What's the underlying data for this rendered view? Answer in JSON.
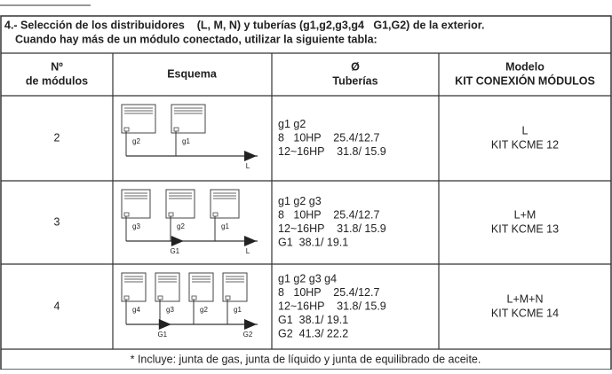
{
  "header": {
    "line1": "4.- Selección de los distribuidores    (L, M, N) y tuberías (g1,g2,g3,g4   G1,G2) de la exterior.",
    "line2": "Cuando hay más de un módulo conectado, utilizar la siguiente tabla:"
  },
  "table": {
    "columns": [
      [
        "Nº",
        "de módulos"
      ],
      [
        "Esquema"
      ],
      [
        "Ø",
        "Tuberías"
      ],
      [
        "Modelo",
        "KIT CONEXIÓN MÓDULOS"
      ]
    ],
    "rows": [
      {
        "modules": "2",
        "diagram": [
          "g2",
          "g1",
          "L"
        ],
        "pipes": [
          "g1 g2",
          "8   10HP    25.4/12.7",
          "12~16HP    31.8/ 15.9"
        ],
        "model": [
          "L",
          "KIT KCME 12"
        ]
      },
      {
        "modules": "3",
        "diagram": [
          "g3",
          "g2",
          "g1",
          "G1",
          "L"
        ],
        "pipes": [
          "g1 g2 g3",
          "8   10HP    25.4/12.7",
          "12~16HP    31.8/ 15.9",
          "G1  38.1/ 19.1"
        ],
        "model": [
          "L+M",
          "KIT KCME 13"
        ]
      },
      {
        "modules": "4",
        "diagram": [
          "g4",
          "g3",
          "g2",
          "g1",
          "G1",
          "G2"
        ],
        "pipes": [
          "g1 g2 g3 g4",
          "8   10HP    25.4/12.7",
          "12~16HP    31.8/ 15.9",
          "G1  38.1/ 19.1",
          "G2  41.3/ 22.2"
        ],
        "model": [
          "L+M+N",
          "KIT KCME 14"
        ]
      }
    ],
    "footnote": "* Incluye: junta de gas, junta de líquido y junta de equilibrado de aceite."
  }
}
